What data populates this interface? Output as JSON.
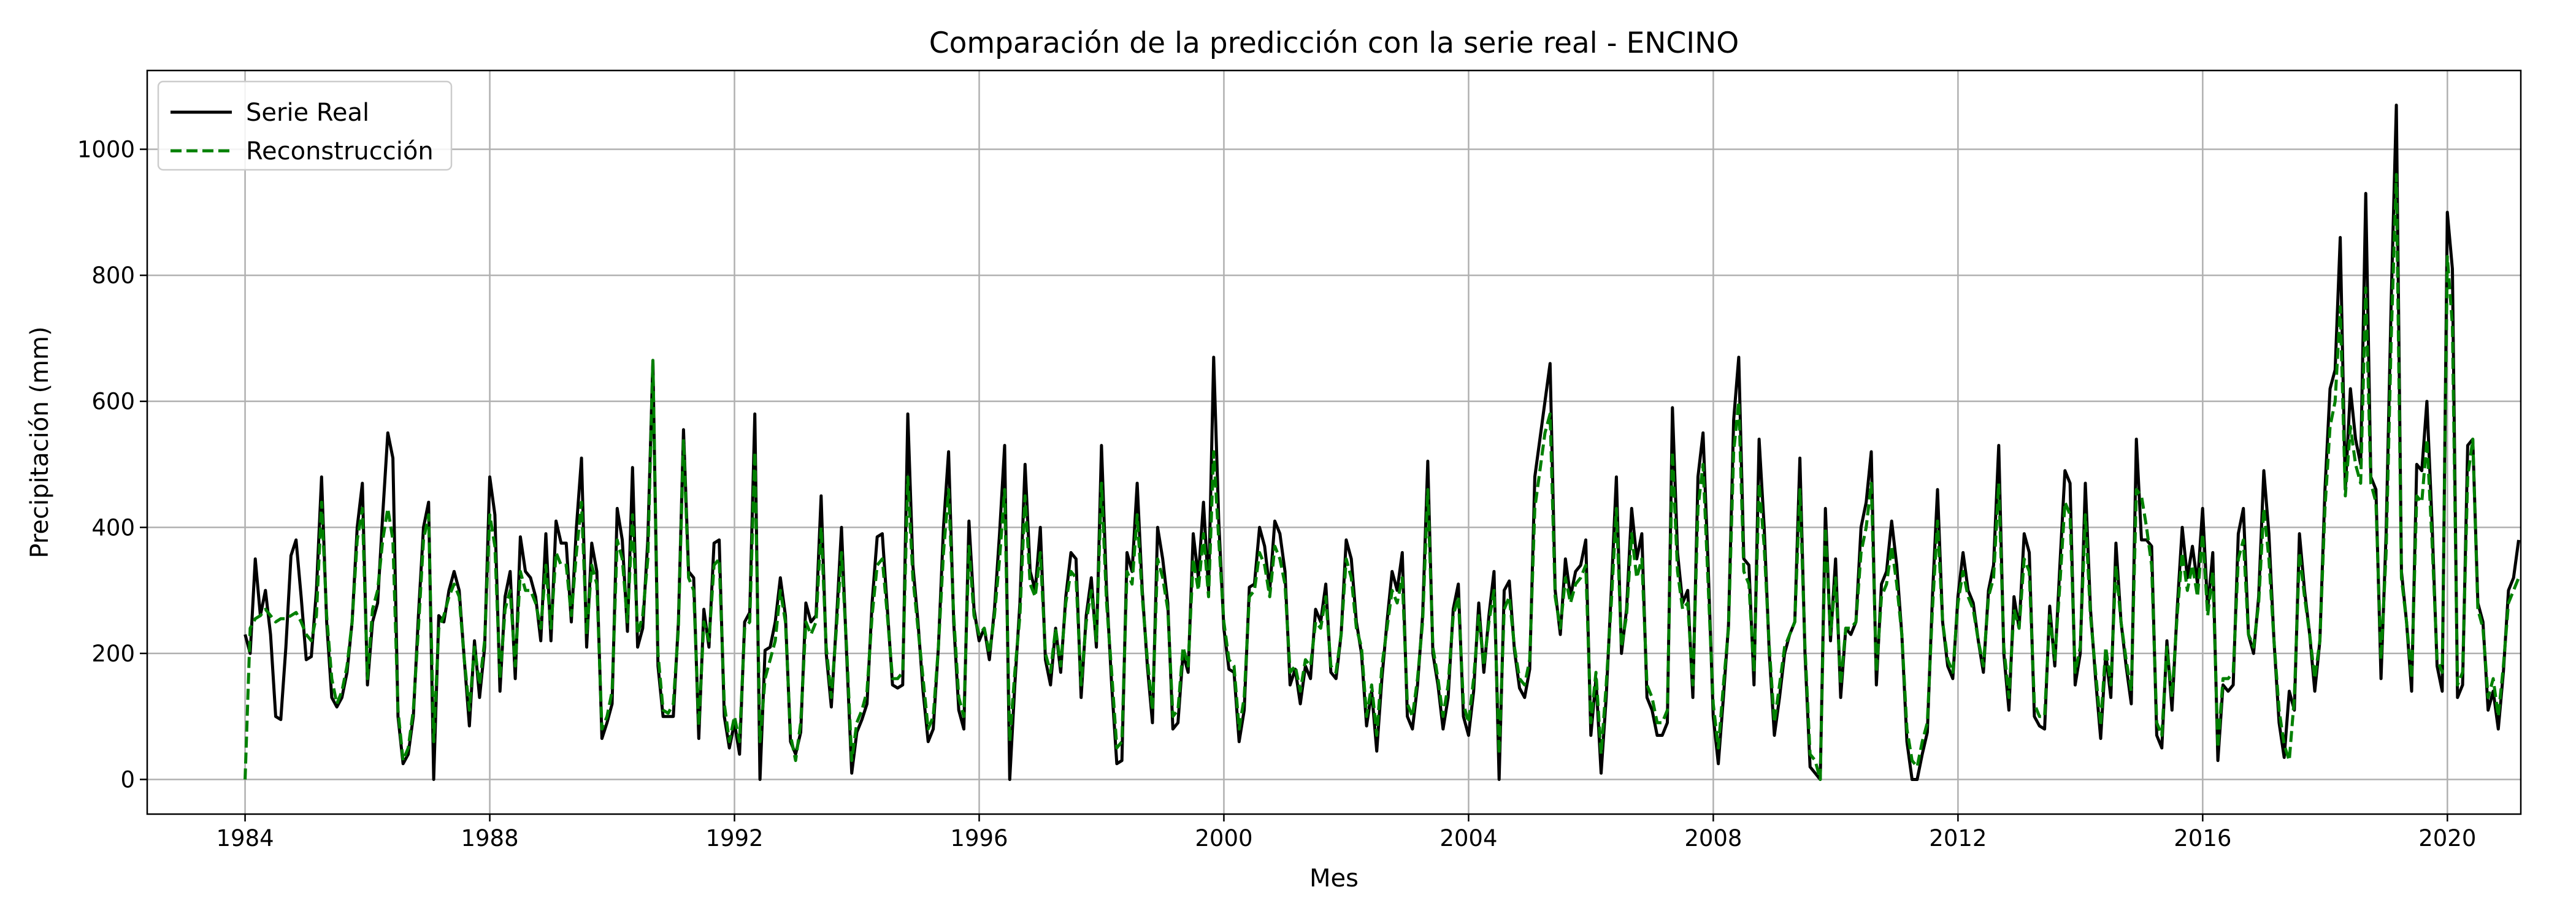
{
  "chart_data": {
    "type": "line",
    "title": "Comparación de la predicción con la serie real - ENCINO",
    "xlabel": "Mes",
    "ylabel": "Precipitación (mm)",
    "xlim": [
      1982.4,
      2021.2
    ],
    "ylim": [
      -55,
      1125
    ],
    "x_ticks": [
      "1984",
      "1988",
      "1992",
      "1996",
      "2000",
      "2004",
      "2008",
      "2012",
      "2016",
      "2020"
    ],
    "y_ticks": [
      "0",
      "200",
      "400",
      "600",
      "800",
      "1000"
    ],
    "grid": true,
    "legend_position": "top-left",
    "x_start": 1984.0,
    "x_step_years": 0.08333,
    "series": [
      {
        "name": "Serie Real",
        "color": "#000000",
        "dash": "solid",
        "values": [
          230,
          200,
          350,
          260,
          300,
          230,
          100,
          95,
          210,
          355,
          380,
          290,
          190,
          195,
          300,
          480,
          250,
          130,
          115,
          130,
          170,
          250,
          400,
          470,
          150,
          250,
          280,
          420,
          550,
          510,
          100,
          25,
          40,
          100,
          260,
          400,
          440,
          0,
          260,
          250,
          300,
          330,
          300,
          190,
          85,
          220,
          130,
          210,
          480,
          420,
          140,
          290,
          330,
          160,
          385,
          330,
          320,
          290,
          220,
          390,
          220,
          410,
          375,
          375,
          250,
          400,
          510,
          210,
          375,
          330,
          65,
          90,
          120,
          430,
          380,
          235,
          495,
          210,
          240,
          380,
          665,
          180,
          100,
          100,
          100,
          250,
          555,
          330,
          320,
          65,
          270,
          210,
          375,
          380,
          100,
          50,
          90,
          40,
          250,
          265,
          580,
          0,
          205,
          210,
          250,
          320,
          260,
          60,
          40,
          75,
          280,
          250,
          260,
          450,
          200,
          115,
          250,
          400,
          200,
          10,
          75,
          95,
          120,
          280,
          385,
          390,
          270,
          150,
          145,
          150,
          580,
          340,
          250,
          140,
          60,
          80,
          210,
          400,
          520,
          250,
          110,
          80,
          410,
          270,
          220,
          240,
          190,
          270,
          390,
          530,
          0,
          150,
          280,
          500,
          330,
          300,
          400,
          190,
          150,
          240,
          170,
          290,
          360,
          350,
          130,
          260,
          320,
          210,
          530,
          300,
          150,
          25,
          30,
          360,
          330,
          470,
          300,
          180,
          90,
          400,
          350,
          280,
          80,
          90,
          200,
          170,
          390,
          320,
          440,
          300,
          670,
          410,
          240,
          175,
          170,
          60,
          110,
          305,
          310,
          400,
          370,
          300,
          410,
          390,
          330,
          150,
          175,
          120,
          180,
          160,
          270,
          250,
          310,
          170,
          160,
          230,
          380,
          350,
          250,
          200,
          85,
          140,
          45,
          160,
          250,
          330,
          300,
          360,
          100,
          80,
          150,
          260,
          505,
          200,
          150,
          80,
          130,
          270,
          310,
          100,
          70,
          140,
          280,
          170,
          260,
          330,
          0,
          300,
          315,
          205,
          145,
          130,
          175,
          480,
          540,
          600,
          660,
          300,
          230,
          350,
          290,
          330,
          340,
          380,
          70,
          160,
          10,
          130,
          300,
          480,
          200,
          270,
          430,
          350,
          390,
          130,
          110,
          70,
          70,
          90,
          590,
          360,
          280,
          300,
          130,
          480,
          550,
          340,
          100,
          25,
          130,
          245,
          570,
          670,
          350,
          340,
          150,
          540,
          400,
          200,
          70,
          130,
          200,
          230,
          250,
          510,
          200,
          20,
          10,
          0,
          430,
          220,
          350,
          130,
          240,
          230,
          250,
          400,
          440,
          520,
          150,
          310,
          330,
          410,
          340,
          230,
          60,
          0,
          0,
          40,
          75,
          290,
          460,
          250,
          180,
          160,
          290,
          360,
          300,
          280,
          220,
          170,
          300,
          340,
          530,
          200,
          110,
          290,
          240,
          390,
          360,
          100,
          85,
          80,
          275,
          180,
          340,
          490,
          470,
          150,
          200,
          470,
          270,
          160,
          65,
          200,
          130,
          375,
          250,
          180,
          120,
          540,
          380,
          380,
          370,
          70,
          50,
          220,
          110,
          270,
          400,
          320,
          370,
          310,
          430,
          270,
          360,
          30,
          150,
          140,
          150,
          390,
          430,
          230,
          200,
          290,
          490,
          390,
          220,
          90,
          35,
          140,
          110,
          390,
          300,
          230,
          140,
          220,
          460,
          620,
          650,
          860,
          460,
          620,
          540,
          500,
          930,
          480,
          460,
          160,
          390,
          760,
          1070,
          330,
          250,
          140,
          500,
          490,
          600,
          410,
          180,
          140,
          900,
          810,
          130,
          150,
          530,
          540,
          280,
          250,
          110,
          140,
          80,
          170,
          300,
          320,
          380
        ]
      },
      {
        "name": "Reconstrucción",
        "color": "#008000",
        "dash": "dashed",
        "values": [
          0,
          240,
          255,
          260,
          270,
          260,
          250,
          255,
          255,
          260,
          265,
          250,
          230,
          220,
          260,
          440,
          260,
          160,
          120,
          140,
          180,
          250,
          380,
          430,
          160,
          270,
          300,
          380,
          430,
          380,
          110,
          30,
          50,
          110,
          240,
          380,
          420,
          60,
          240,
          260,
          290,
          310,
          290,
          190,
          110,
          210,
          150,
          220,
          420,
          370,
          160,
          270,
          300,
          180,
          330,
          300,
          300,
          280,
          240,
          340,
          240,
          360,
          340,
          340,
          260,
          360,
          440,
          230,
          340,
          310,
          80,
          100,
          140,
          380,
          350,
          250,
          420,
          230,
          260,
          350,
          665,
          200,
          110,
          105,
          120,
          240,
          540,
          320,
          300,
          85,
          250,
          220,
          340,
          350,
          120,
          60,
          100,
          60,
          240,
          250,
          520,
          60,
          160,
          190,
          220,
          300,
          250,
          70,
          30,
          90,
          250,
          230,
          250,
          400,
          210,
          130,
          240,
          360,
          210,
          30,
          90,
          110,
          140,
          260,
          340,
          350,
          260,
          160,
          160,
          170,
          480,
          320,
          240,
          160,
          80,
          100,
          210,
          360,
          460,
          260,
          130,
          100,
          370,
          260,
          230,
          240,
          200,
          260,
          350,
          460,
          60,
          170,
          260,
          450,
          310,
          290,
          360,
          200,
          170,
          240,
          180,
          280,
          330,
          320,
          150,
          250,
          300,
          220,
          470,
          280,
          170,
          50,
          60,
          330,
          310,
          420,
          290,
          190,
          110,
          350,
          320,
          270,
          100,
          110,
          210,
          180,
          350,
          300,
          390,
          290,
          520,
          380,
          250,
          190,
          180,
          80,
          130,
          290,
          300,
          360,
          340,
          290,
          370,
          350,
          310,
          170,
          180,
          140,
          190,
          180,
          250,
          240,
          290,
          180,
          170,
          230,
          350,
          320,
          240,
          210,
          100,
          150,
          70,
          180,
          240,
          300,
          280,
          320,
          120,
          100,
          160,
          250,
          460,
          210,
          160,
          100,
          150,
          260,
          290,
          120,
          90,
          160,
          260,
          180,
          250,
          300,
          40,
          270,
          290,
          210,
          160,
          150,
          190,
          430,
          490,
          550,
          580,
          290,
          240,
          320,
          280,
          310,
          320,
          340,
          90,
          170,
          40,
          150,
          280,
          430,
          210,
          260,
          390,
          320,
          350,
          150,
          130,
          90,
          90,
          110,
          520,
          330,
          270,
          280,
          150,
          430,
          500,
          310,
          120,
          50,
          150,
          240,
          520,
          600,
          330,
          310,
          170,
          470,
          370,
          210,
          90,
          150,
          210,
          230,
          250,
          460,
          210,
          40,
          30,
          0,
          400,
          230,
          320,
          150,
          240,
          240,
          250,
          360,
          400,
          470,
          170,
          290,
          310,
          370,
          310,
          230,
          80,
          30,
          20,
          60,
          90,
          270,
          410,
          250,
          190,
          170,
          280,
          330,
          290,
          270,
          220,
          180,
          290,
          320,
          470,
          210,
          130,
          270,
          240,
          350,
          330,
          120,
          100,
          100,
          260,
          190,
          310,
          440,
          420,
          170,
          210,
          420,
          260,
          170,
          85,
          210,
          150,
          340,
          250,
          190,
          140,
          460,
          450,
          400,
          340,
          90,
          70,
          210,
          130,
          260,
          360,
          300,
          340,
          290,
          390,
          260,
          330,
          50,
          160,
          160,
          170,
          350,
          380,
          230,
          210,
          280,
          430,
          350,
          220,
          110,
          55,
          30,
          130,
          360,
          290,
          230,
          160,
          220,
          430,
          560,
          600,
          750,
          450,
          560,
          500,
          470,
          780,
          470,
          440,
          190,
          360,
          700,
          960,
          320,
          250,
          160,
          450,
          440,
          540,
          380,
          190,
          170,
          830,
          720,
          150,
          170,
          480,
          540,
          270,
          240,
          130,
          160,
          100,
          180,
          280,
          300,
          320
        ]
      }
    ]
  }
}
